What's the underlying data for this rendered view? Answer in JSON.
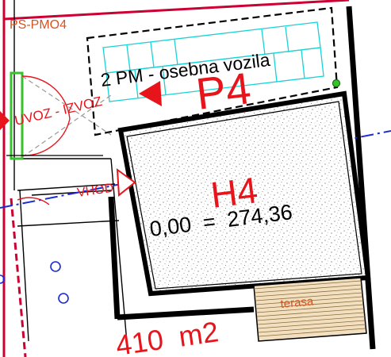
{
  "plan": {
    "zone_label": "PS-PMO4",
    "parking_label": "2 PM - osebna vozila",
    "parking_code": "P4",
    "exit_label": "UVOZ - IZVOZ",
    "entrance_label": "VHOD",
    "house_code": "H4",
    "elevation": "0,00  =  274,36",
    "terrace_label": "terasa",
    "area_label": "410  m2"
  },
  "colors": {
    "plot_boundary": "#cc0033",
    "label_red": "#e8141b",
    "axis_blue": "#1a2bd6",
    "parking_cyan": "#19d3d6",
    "zone_orange": "#d9531e",
    "terrace_fill": "#f1dfbf",
    "terrace_line": "#8a6d3b",
    "green": "#37c22c"
  },
  "icons": [
    "arrow-left-icon",
    "arrow-right-icon",
    "circle-marker-icon"
  ]
}
